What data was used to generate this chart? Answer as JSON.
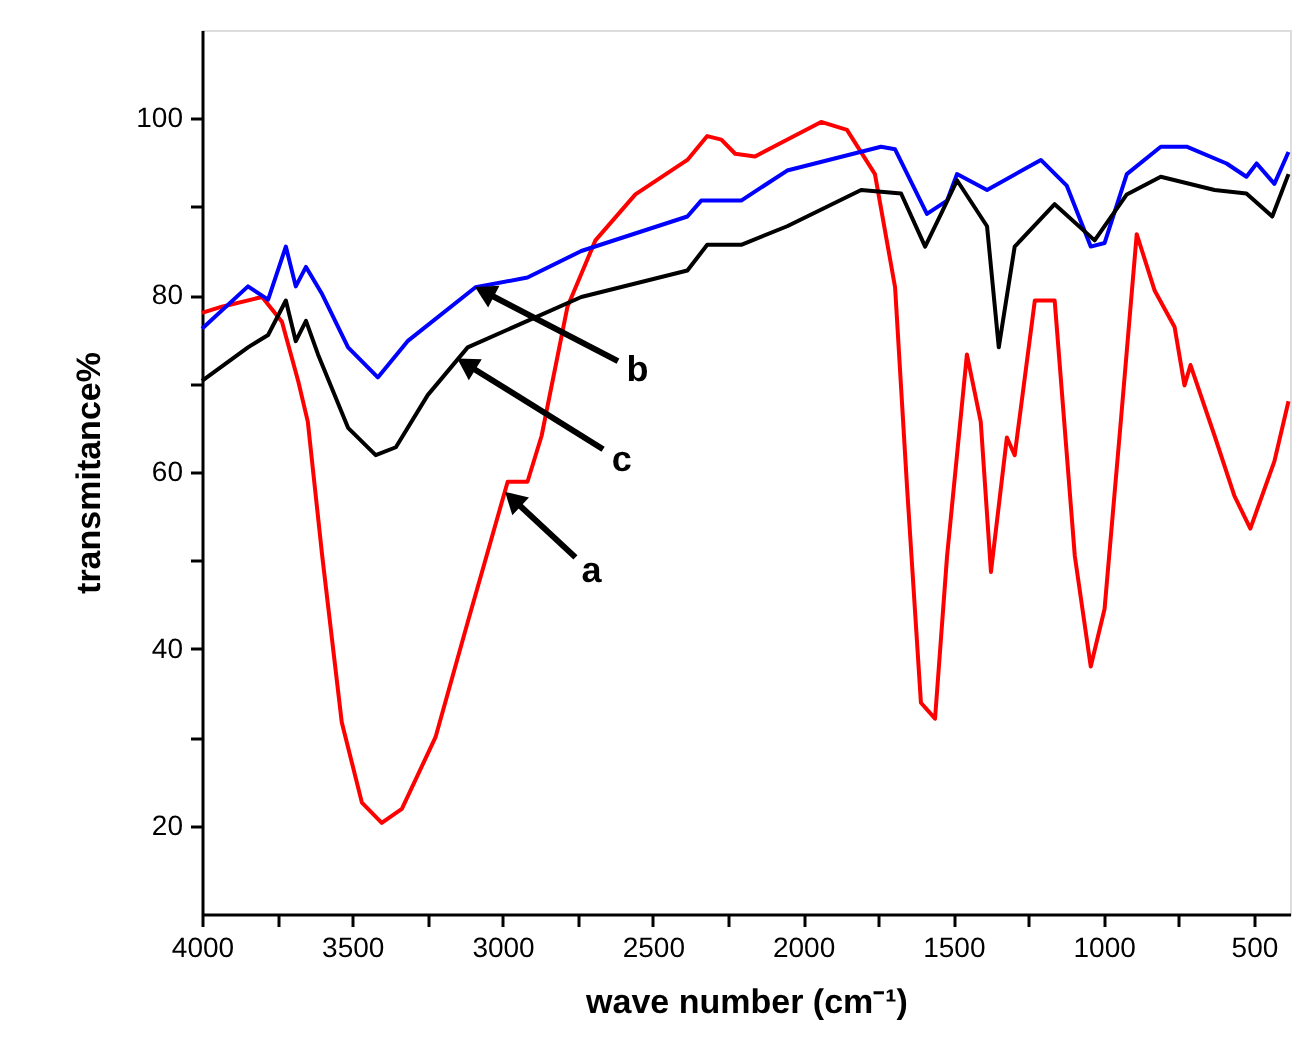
{
  "chart_data": {
    "type": "line",
    "xlabel": "wave number (cm⁻¹)",
    "ylabel": "transmitance%",
    "xlim": [
      4000,
      380
    ],
    "ylim": [
      10,
      110
    ],
    "xticks": [
      4000,
      {
        "value": 3750,
        "label": null
      },
      3500,
      {
        "value": 3250,
        "label": null
      },
      3000,
      {
        "value": 2750,
        "label": null
      },
      2500,
      {
        "value": 2250,
        "label": null
      },
      2000,
      {
        "value": 1750,
        "label": null
      },
      1500,
      {
        "value": 1250,
        "label": null
      },
      1000,
      {
        "value": 750,
        "label": null
      },
      500
    ],
    "yticks": [
      20,
      {
        "value": 30,
        "label": null
      },
      40,
      {
        "value": 50,
        "label": null
      },
      60,
      {
        "value": 70,
        "label": null
      },
      80,
      {
        "value": 90,
        "label": null
      },
      100
    ],
    "grid": false,
    "line_style": "solid",
    "marker": "none",
    "series": [
      {
        "color": "#ff0000",
        "x": [
          4000,
          3934,
          3800,
          3734,
          3680,
          3648,
          3600,
          3535,
          3468,
          3402,
          3335,
          3223,
          3116,
          2983,
          2917,
          2870,
          2784,
          2691,
          2558,
          2385,
          2319,
          2272,
          2226,
          2160,
          1940,
          1854,
          1761,
          1694,
          1654,
          1608,
          1561,
          1521,
          1455,
          1409,
          1375,
          1322,
          1296,
          1229,
          1163,
          1096,
          1043,
          997,
          943,
          890,
          830,
          764,
          731,
          711,
          631,
          565,
          512,
          432,
          385
        ],
        "values": [
          78,
          78.7,
          79.8,
          77,
          70.3,
          65.7,
          50.5,
          31.7,
          22.6,
          20.3,
          21.9,
          30,
          43,
          58.9,
          58.9,
          64.1,
          78.7,
          86.2,
          91.4,
          95.3,
          98,
          97.6,
          96,
          95.7,
          99.6,
          98.7,
          93.7,
          80.9,
          58.2,
          33.9,
          32.1,
          50.5,
          73.3,
          65.7,
          48.7,
          63.9,
          61.9,
          79.4,
          79.4,
          50.5,
          38,
          44.5,
          65.7,
          86.9,
          80.5,
          76.4,
          69.8,
          72.1,
          64.1,
          57.3,
          53.6,
          61.2,
          68
        ]
      },
      {
        "color": "#0000ff",
        "x": [
          4000,
          3847,
          3780,
          3721,
          3688,
          3654,
          3600,
          3514,
          3415,
          3316,
          3090,
          2917,
          2738,
          2385,
          2339,
          2206,
          2053,
          1741,
          1694,
          1588,
          1521,
          1488,
          1388,
          1209,
          1123,
          1043,
          997,
          923,
          810,
          724,
          591,
          525,
          491,
          432,
          385
        ],
        "values": [
          76.2,
          81,
          79.5,
          85.5,
          81,
          83.2,
          80.1,
          74.1,
          70.7,
          74.8,
          80.9,
          82,
          85,
          88.9,
          90.7,
          90.7,
          94.1,
          96.8,
          96.5,
          89.2,
          90.7,
          93.7,
          91.9,
          95.3,
          92.4,
          85.5,
          85.9,
          93.7,
          96.8,
          96.8,
          94.9,
          93.4,
          94.9,
          92.6,
          96.2
        ]
      },
      {
        "color": "#000000",
        "x": [
          4000,
          3847,
          3780,
          3721,
          3688,
          3654,
          3614,
          3514,
          3422,
          3355,
          3249,
          3116,
          2917,
          2738,
          2385,
          2319,
          2206,
          2053,
          1807,
          1674,
          1594,
          1541,
          1488,
          1388,
          1349,
          1296,
          1163,
          1030,
          923,
          810,
          631,
          525,
          439,
          385
        ],
        "values": [
          70.3,
          74.1,
          75.5,
          79.4,
          74.8,
          77.1,
          73.3,
          65,
          61.9,
          62.8,
          68.7,
          74.1,
          77.1,
          79.8,
          82.8,
          85.7,
          85.7,
          87.8,
          91.9,
          91.5,
          85.5,
          89.2,
          93,
          87.8,
          74.1,
          85.5,
          90.3,
          86.2,
          91.4,
          93.4,
          91.9,
          91.5,
          88.9,
          93.7
        ]
      }
    ],
    "annotations": [
      {
        "text": "a",
        "x": 2990,
        "y": 57.7
      },
      {
        "text": "b",
        "x": 3090,
        "y": 80.9
      },
      {
        "text": "c",
        "x": 3149,
        "y": 72.8
      }
    ]
  }
}
